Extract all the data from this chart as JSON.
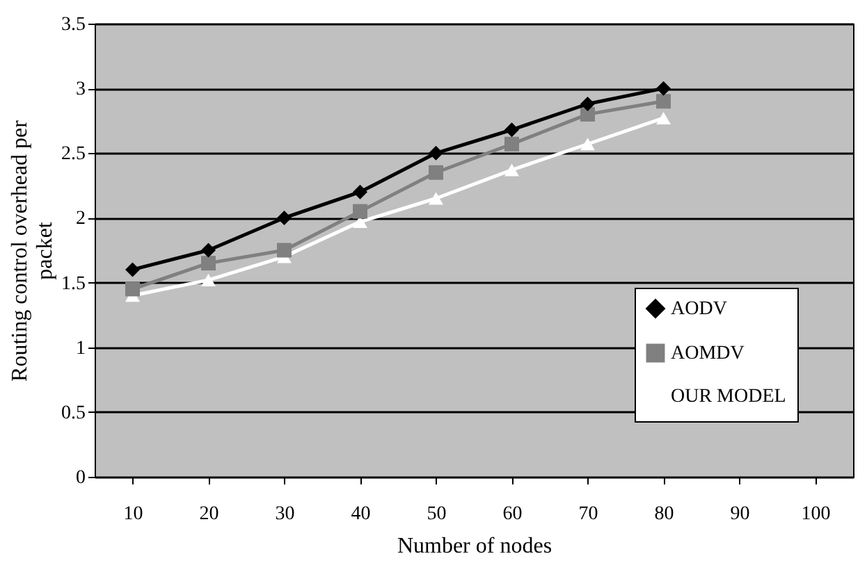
{
  "chart_data": {
    "type": "line",
    "xlabel": "Number of nodes",
    "ylabel": "Routing control overhead per packet",
    "categories": [
      "10",
      "20",
      "30",
      "40",
      "50",
      "60",
      "70",
      "80",
      "90",
      "100"
    ],
    "series": [
      {
        "name": "AODV",
        "color": "#000000",
        "marker": "diamond",
        "values": [
          1.6,
          1.75,
          2.0,
          2.2,
          2.5,
          2.68,
          2.88,
          3.0,
          null,
          null
        ]
      },
      {
        "name": "AOMDV",
        "color": "#808080",
        "marker": "square",
        "values": [
          1.45,
          1.65,
          1.75,
          2.05,
          2.35,
          2.57,
          2.8,
          2.9,
          null,
          null
        ]
      },
      {
        "name": "OUR MODEL",
        "color": "#ffffff",
        "marker": "triangle",
        "values": [
          1.4,
          1.52,
          1.7,
          1.97,
          2.15,
          2.37,
          2.57,
          2.77,
          null,
          null
        ]
      }
    ],
    "ylim": [
      0,
      3.5
    ],
    "yticks": [
      0,
      0.5,
      1,
      1.5,
      2,
      2.5,
      3,
      3.5
    ],
    "grid": "y",
    "legend": "bottom right",
    "line_style": "solid"
  }
}
